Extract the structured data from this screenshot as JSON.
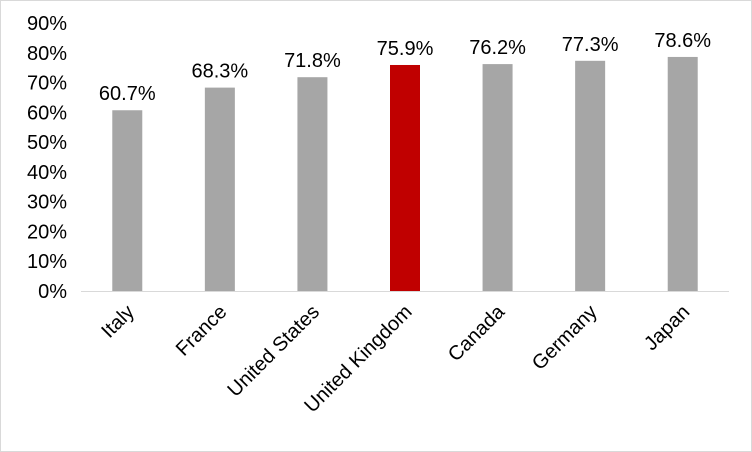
{
  "chart_data": {
    "type": "bar",
    "title": "",
    "xlabel": "",
    "ylabel": "",
    "categories": [
      "Italy",
      "France",
      "United States",
      "United Kingdom",
      "Canada",
      "Germany",
      "Japan"
    ],
    "values": [
      60.7,
      68.3,
      71.8,
      75.9,
      76.2,
      77.3,
      78.6
    ],
    "data_labels": [
      "60.7%",
      "68.3%",
      "71.8%",
      "75.9%",
      "76.2%",
      "77.3%",
      "78.6%"
    ],
    "ylim": [
      0,
      90
    ],
    "yticks": [
      0,
      10,
      20,
      30,
      40,
      50,
      60,
      70,
      80,
      90
    ],
    "ytick_labels": [
      "0%",
      "10%",
      "20%",
      "30%",
      "40%",
      "50%",
      "60%",
      "70%",
      "80%",
      "90%"
    ],
    "grid": false,
    "legend": "none",
    "colors": {
      "default_bar": "#a6a6a6",
      "highlight_bar": "#c00000",
      "axis": "#d9d9d9"
    },
    "highlight_category": "United Kingdom"
  }
}
